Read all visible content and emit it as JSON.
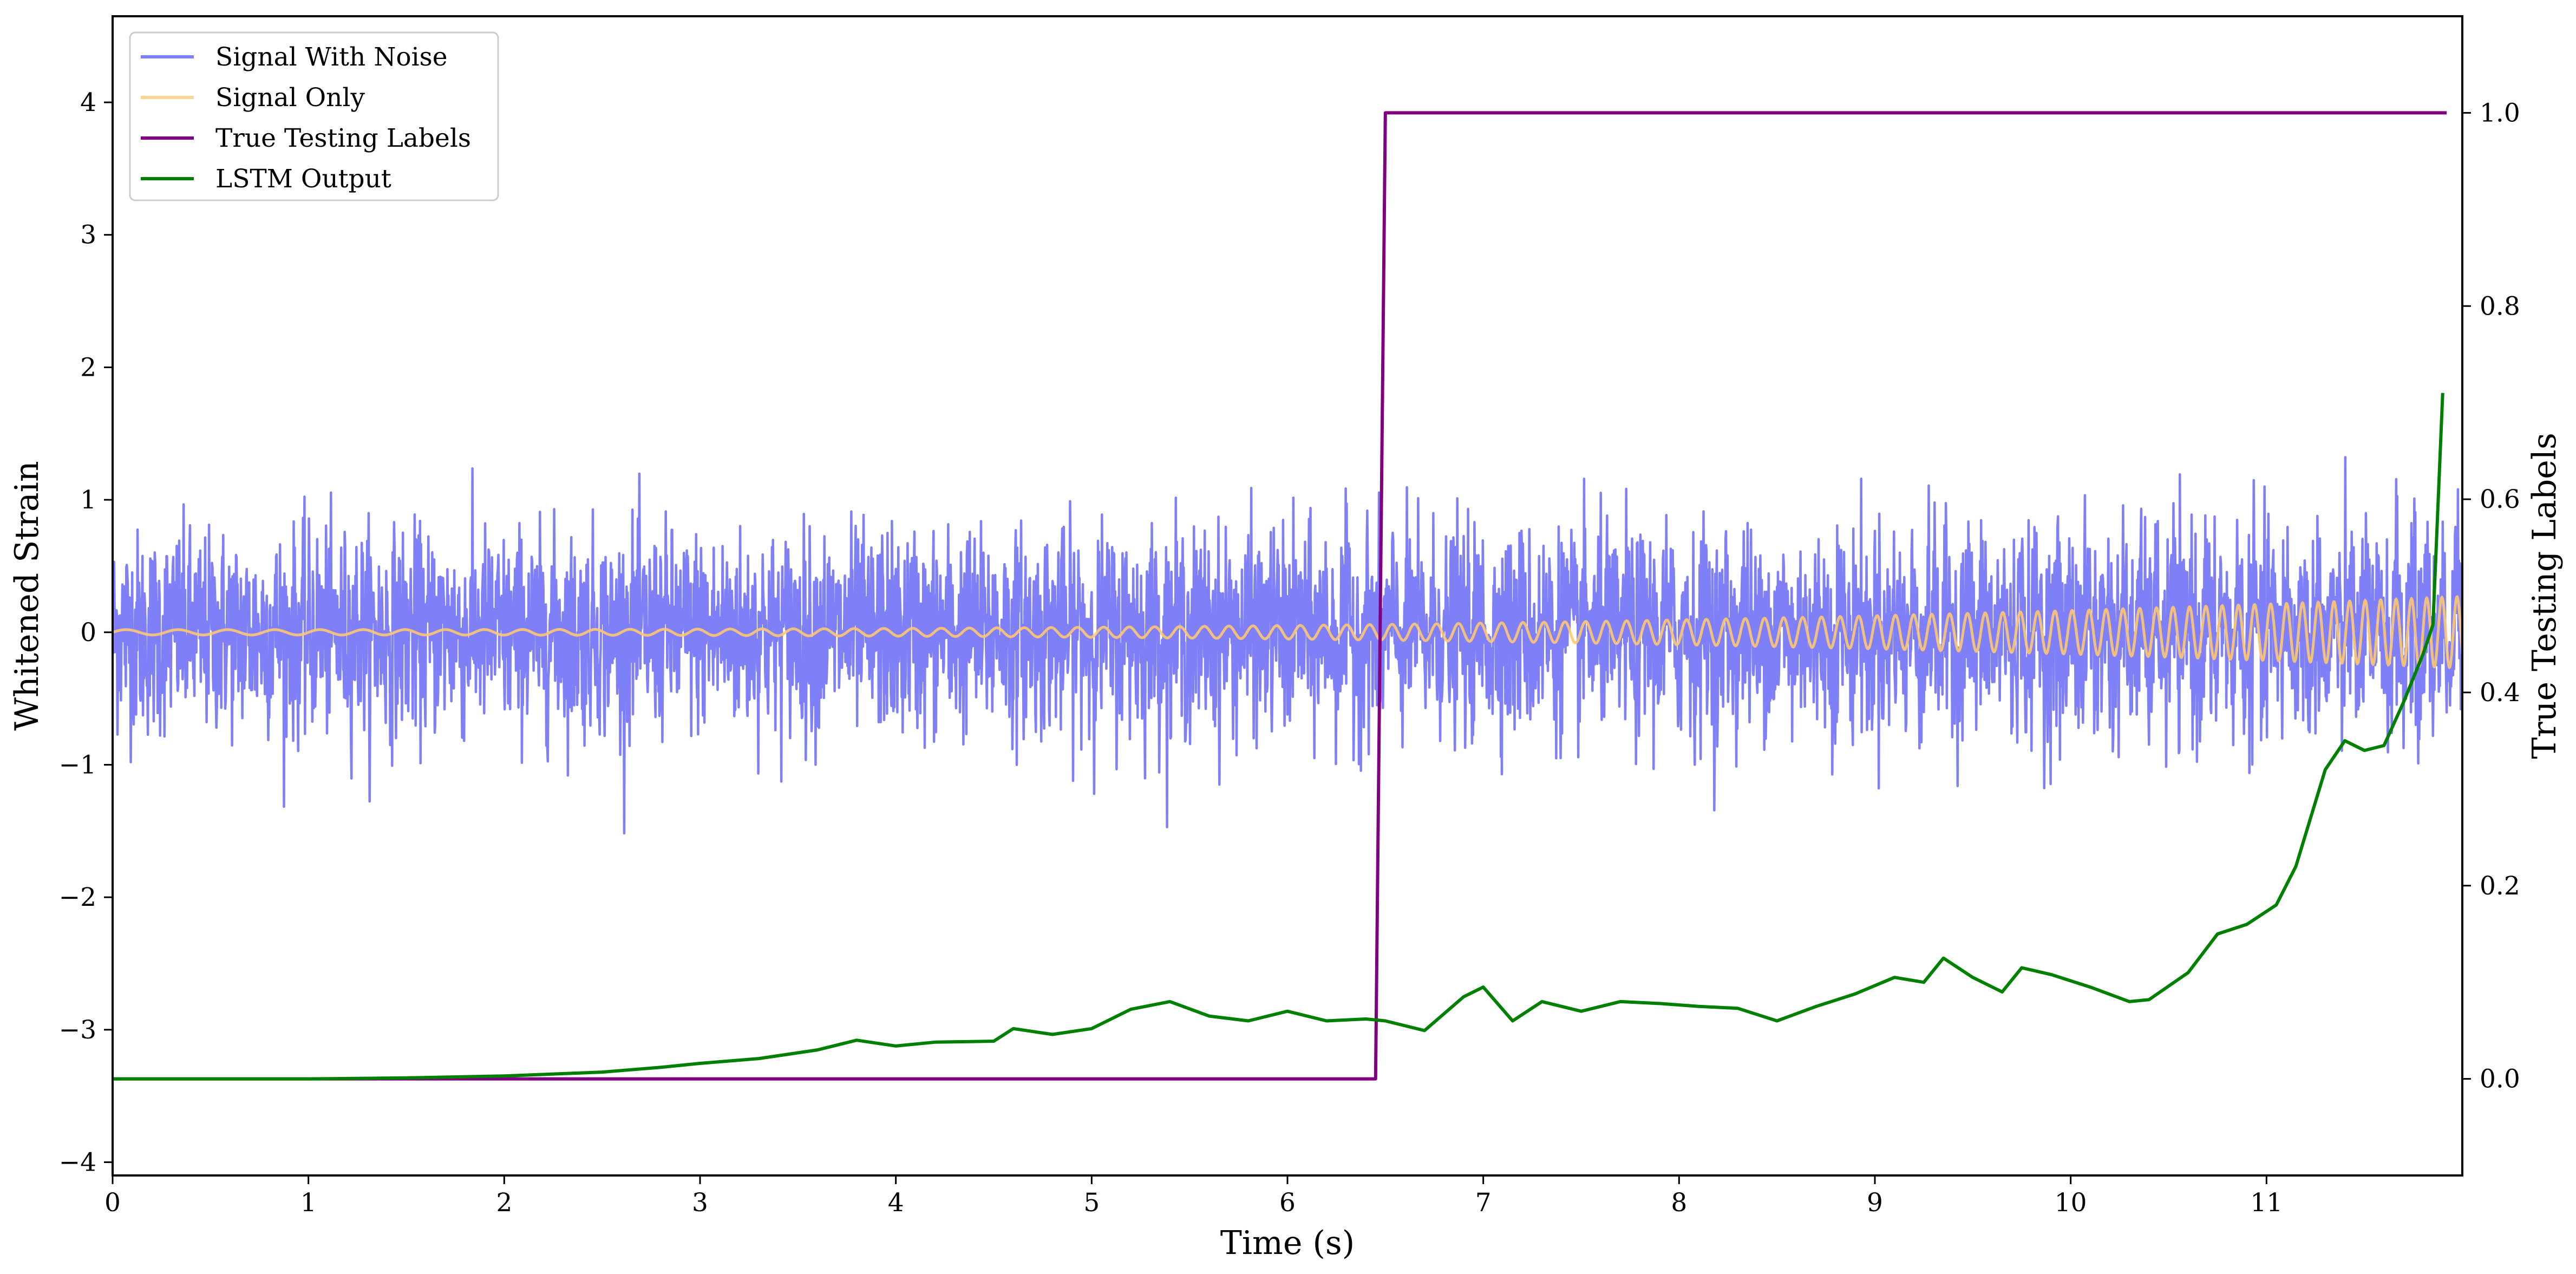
{
  "chart_data": {
    "type": "line",
    "xlabel": "Time (s)",
    "ylabel": "Whitened Strain",
    "ylabel_right": "True Testing Labels",
    "xlim": [
      0,
      12
    ],
    "ylim": [
      -4.1,
      4.65
    ],
    "ylim_right": [
      -0.1,
      1.1
    ],
    "x_ticks": [
      0,
      1,
      2,
      3,
      4,
      5,
      6,
      7,
      8,
      9,
      10,
      11
    ],
    "y_ticks": [
      -4,
      -3,
      -2,
      -1,
      0,
      1,
      2,
      3,
      4
    ],
    "y_ticks_right": [
      0.0,
      0.2,
      0.4,
      0.6,
      0.8,
      1.0
    ],
    "legend": {
      "placement": "upper-left"
    },
    "grid": false,
    "series": [
      {
        "name": "Signal With Noise",
        "axis": "left",
        "color": "#7f7ff8",
        "description_values": {
          "noise_std": 0.38,
          "duration": 12,
          "sample_rate": 400
        }
      },
      {
        "name": "Signal Only",
        "axis": "left",
        "color": "#ffc870",
        "chirp": {
          "amp_start": 0.02,
          "amp_end": 0.27,
          "freq_start": 3.6,
          "freq_end": 13.0,
          "t_start": 0,
          "t_end": 12
        }
      },
      {
        "name": "True Testing Labels",
        "axis": "right",
        "color": "#800080",
        "points": [
          [
            0,
            0.0
          ],
          [
            6.45,
            0.0
          ],
          [
            6.5,
            1.0
          ],
          [
            11.92,
            1.0
          ]
        ]
      },
      {
        "name": "LSTM Output",
        "axis": "right",
        "color": "#008000",
        "points": [
          [
            0,
            0.0
          ],
          [
            1.0,
            0.0
          ],
          [
            1.5,
            0.001
          ],
          [
            2.0,
            0.003
          ],
          [
            2.5,
            0.007
          ],
          [
            2.8,
            0.012
          ],
          [
            3.0,
            0.016
          ],
          [
            3.3,
            0.021
          ],
          [
            3.6,
            0.03
          ],
          [
            3.8,
            0.04
          ],
          [
            4.0,
            0.034
          ],
          [
            4.2,
            0.038
          ],
          [
            4.5,
            0.039
          ],
          [
            4.6,
            0.052
          ],
          [
            4.8,
            0.046
          ],
          [
            5.0,
            0.052
          ],
          [
            5.2,
            0.072
          ],
          [
            5.4,
            0.08
          ],
          [
            5.6,
            0.065
          ],
          [
            5.8,
            0.06
          ],
          [
            6.0,
            0.07
          ],
          [
            6.2,
            0.06
          ],
          [
            6.4,
            0.062
          ],
          [
            6.5,
            0.06
          ],
          [
            6.7,
            0.05
          ],
          [
            6.9,
            0.085
          ],
          [
            7.0,
            0.095
          ],
          [
            7.15,
            0.06
          ],
          [
            7.3,
            0.08
          ],
          [
            7.5,
            0.07
          ],
          [
            7.7,
            0.08
          ],
          [
            7.9,
            0.078
          ],
          [
            8.1,
            0.075
          ],
          [
            8.3,
            0.073
          ],
          [
            8.5,
            0.06
          ],
          [
            8.7,
            0.075
          ],
          [
            8.9,
            0.088
          ],
          [
            9.1,
            0.105
          ],
          [
            9.25,
            0.1
          ],
          [
            9.35,
            0.125
          ],
          [
            9.5,
            0.105
          ],
          [
            9.65,
            0.09
          ],
          [
            9.75,
            0.115
          ],
          [
            9.9,
            0.108
          ],
          [
            10.1,
            0.095
          ],
          [
            10.3,
            0.08
          ],
          [
            10.4,
            0.082
          ],
          [
            10.6,
            0.11
          ],
          [
            10.75,
            0.15
          ],
          [
            10.9,
            0.16
          ],
          [
            11.05,
            0.18
          ],
          [
            11.15,
            0.22
          ],
          [
            11.3,
            0.32
          ],
          [
            11.4,
            0.35
          ],
          [
            11.5,
            0.34
          ],
          [
            11.6,
            0.345
          ],
          [
            11.7,
            0.39
          ],
          [
            11.8,
            0.44
          ],
          [
            11.85,
            0.47
          ],
          [
            11.9,
            0.71
          ]
        ]
      }
    ]
  }
}
